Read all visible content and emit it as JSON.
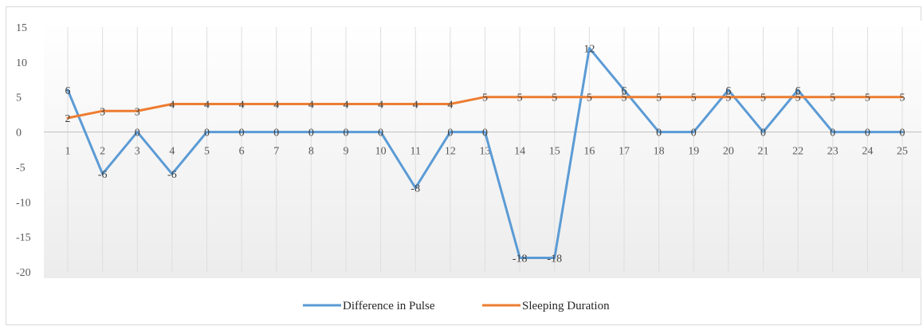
{
  "chart_data": {
    "type": "line",
    "title": "",
    "xlabel": "",
    "ylabel": "",
    "categories": [
      "1",
      "2",
      "3",
      "4",
      "5",
      "6",
      "7",
      "8",
      "9",
      "10",
      "11",
      "12",
      "13",
      "14",
      "15",
      "16",
      "17",
      "18",
      "19",
      "20",
      "21",
      "22",
      "23",
      "24",
      "25"
    ],
    "ylim": [
      -20,
      15
    ],
    "yticks": [
      "15",
      "10",
      "5",
      "0",
      "-5",
      "-10",
      "-15",
      "-20"
    ],
    "grid": "vertical lines at categories",
    "legend_position": "bottom",
    "series": [
      {
        "name": "Difference in Pulse",
        "color": "#5b9bd5",
        "values": [
          6,
          -6,
          0,
          -6,
          0,
          0,
          0,
          0,
          0,
          0,
          -8,
          0,
          0,
          -18,
          -18,
          12,
          6,
          0,
          0,
          6,
          0,
          6,
          0,
          0,
          0
        ],
        "labels": [
          "6",
          "-6",
          "0",
          "-6",
          "0",
          "0",
          "0",
          "0",
          "0",
          "0",
          "-8",
          "0",
          "0",
          "-18",
          "-18",
          "12",
          "6",
          "0",
          "0",
          "6",
          "0",
          "6",
          "0",
          "0",
          "0"
        ]
      },
      {
        "name": "Sleeping Duration",
        "color": "#ed7d31",
        "values": [
          2,
          3,
          3,
          4,
          4,
          4,
          4,
          4,
          4,
          4,
          4,
          4,
          5,
          5,
          5,
          5,
          5,
          5,
          5,
          5,
          5,
          5,
          5,
          5,
          5
        ],
        "labels": [
          "2",
          "3",
          "3",
          "4",
          "4",
          "4",
          "4",
          "4",
          "4",
          "4",
          "4",
          "4",
          "5",
          "5",
          "5",
          "5",
          "5",
          "5",
          "5",
          "5",
          "5",
          "5",
          "5",
          "5",
          "5"
        ]
      }
    ]
  }
}
